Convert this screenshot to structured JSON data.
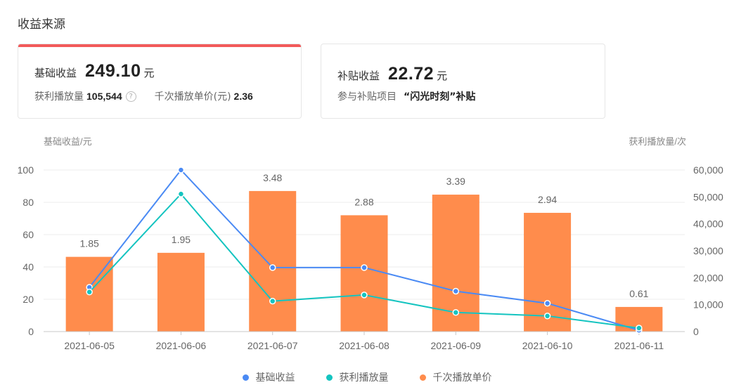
{
  "section_title": "收益来源",
  "cards": {
    "basic": {
      "label": "基础收益",
      "amount": "249.10",
      "unit": "元",
      "plays_label": "获利播放量",
      "plays_value": "105,544",
      "help_icon": "?",
      "cpm_label": "千次播放单价(元)",
      "cpm_value": "2.36",
      "accent_color": "#f25a5a"
    },
    "subsidy": {
      "label": "补贴收益",
      "amount": "22.72",
      "unit": "元",
      "project_label": "参与补贴项目",
      "project_value": "“闪光时刻”补贴"
    }
  },
  "chart_data": {
    "type": "bar+line",
    "title": "",
    "categories": [
      "2021-06-05",
      "2021-06-06",
      "2021-06-07",
      "2021-06-08",
      "2021-06-09",
      "2021-06-10",
      "2021-06-11"
    ],
    "ylabel_left": "基础收益/元",
    "ylabel_right": "获利播放量/次",
    "ylim_left": [
      0,
      100
    ],
    "yticks_left": [
      0,
      20,
      40,
      60,
      80,
      100
    ],
    "ylim_right": [
      0,
      60000
    ],
    "yticks_right": [
      "0",
      "10,000",
      "20,000",
      "30,000",
      "40,000",
      "50,000",
      "60,000"
    ],
    "grid": true,
    "legend_position": "bottom",
    "series": [
      {
        "name": "基础收益",
        "type": "line",
        "axis": "left",
        "color": "#4a8af4",
        "values": [
          27.4,
          100,
          39.6,
          39.6,
          25,
          17.5,
          0.8
        ]
      },
      {
        "name": "获利播放量",
        "type": "line",
        "axis": "right",
        "color": "#14c4c0",
        "values": [
          14700,
          51100,
          11300,
          13600,
          7100,
          5800,
          1300
        ]
      },
      {
        "name": "千次播放单价",
        "type": "bar",
        "axis": "hidden",
        "axis_max": 4,
        "color": "#ff8c4c",
        "values": [
          1.85,
          1.95,
          3.48,
          2.88,
          3.39,
          2.94,
          0.61
        ],
        "labels": [
          "1.85",
          "1.95",
          "3.48",
          "2.88",
          "3.39",
          "2.94",
          "0.61"
        ]
      }
    ]
  },
  "legend": [
    {
      "label": "基础收益",
      "color": "#4a8af4"
    },
    {
      "label": "获利播放量",
      "color": "#14c4c0"
    },
    {
      "label": "千次播放单价",
      "color": "#ff8c4c"
    }
  ]
}
